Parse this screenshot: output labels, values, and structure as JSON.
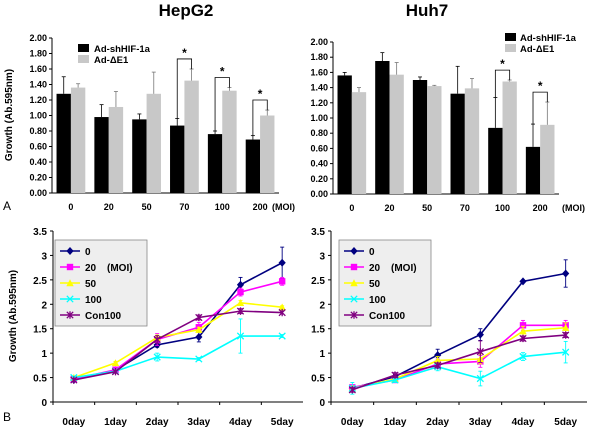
{
  "colors": {
    "bar_shHIF": "#000000",
    "bar_dE1": "#c8c8c8",
    "line_0": "#000080",
    "line_20": "#ff00ff",
    "line_50": "#ffff00",
    "line_100": "#00ffff",
    "line_con100": "#800080",
    "legend_bg": "#eeeeee"
  },
  "panels": {
    "A": "A",
    "B": "B"
  },
  "chart_data": [
    {
      "id": "hepg2-bar",
      "type": "bar",
      "title": "HepG2",
      "ylabel": "Growth (Ab.595nm)",
      "xlabel": "",
      "ylim": [
        0,
        2.0
      ],
      "yticks": [
        "0.00",
        "0.20",
        "0.40",
        "0.60",
        "0.80",
        "1.00",
        "1.20",
        "1.40",
        "1.60",
        "1.80",
        "2.00"
      ],
      "categories": [
        "0",
        "20",
        "50",
        "70",
        "100",
        "200"
      ],
      "x_unit_label": "(MOI)",
      "legend_position": "top-left",
      "series": [
        {
          "name": "Ad-shHIF-1a",
          "values": [
            1.28,
            0.98,
            0.95,
            0.87,
            0.76,
            0.69
          ],
          "errors": [
            0.22,
            0.16,
            0.07,
            0.09,
            0.04,
            0.05
          ]
        },
        {
          "name": "Ad-ΔE1",
          "values": [
            1.36,
            1.11,
            1.28,
            1.45,
            1.32,
            1.0
          ],
          "errors": [
            0.05,
            0.2,
            0.28,
            0.15,
            0.04,
            0.07
          ]
        }
      ],
      "significance": [
        {
          "category": "70",
          "label": "*"
        },
        {
          "category": "100",
          "label": "*"
        },
        {
          "category": "200",
          "label": "*"
        }
      ]
    },
    {
      "id": "huh7-bar",
      "type": "bar",
      "title": "Huh7",
      "ylabel": "",
      "xlabel": "",
      "ylim": [
        0,
        2.0
      ],
      "yticks": [
        "0.00",
        "0.20",
        "0.40",
        "0.60",
        "0.80",
        "1.00",
        "1.20",
        "1.40",
        "1.60",
        "1.80",
        "2.00"
      ],
      "categories": [
        "0",
        "20",
        "50",
        "70",
        "100",
        "200"
      ],
      "x_unit_label": "(MOI)",
      "legend_position": "top-right",
      "series": [
        {
          "name": "Ad-shHIF-1a",
          "values": [
            1.56,
            1.75,
            1.5,
            1.32,
            0.87,
            0.62
          ],
          "errors": [
            0.04,
            0.11,
            0.04,
            0.36,
            0.4,
            0.3
          ]
        },
        {
          "name": "Ad-ΔE1",
          "values": [
            1.34,
            1.57,
            1.42,
            1.39,
            1.48,
            0.91
          ],
          "errors": [
            0.06,
            0.16,
            0.01,
            0.13,
            0.02,
            0.3
          ]
        }
      ],
      "significance": [
        {
          "category": "100",
          "label": "*"
        },
        {
          "category": "200",
          "label": "*"
        }
      ]
    },
    {
      "id": "hepg2-line",
      "type": "line",
      "title": "",
      "ylabel": "Growth (Ab.595nm)",
      "xlabel": "",
      "ylim": [
        0,
        3.5
      ],
      "yticks": [
        "0",
        "0.5",
        "1",
        "1.5",
        "2",
        "2.5",
        "3",
        "3.5"
      ],
      "x": [
        "0day",
        "1day",
        "2day",
        "3day",
        "4day",
        "5day"
      ],
      "legend_position": "top-left",
      "legend_unit": "(MOI)",
      "series": [
        {
          "name": "0",
          "key": "line_0",
          "marker": "diamond",
          "values": [
            0.45,
            0.65,
            1.17,
            1.33,
            2.4,
            2.85
          ],
          "errors": [
            0.03,
            0.03,
            0.05,
            0.1,
            0.15,
            0.32
          ]
        },
        {
          "name": "20",
          "key": "line_20",
          "marker": "square",
          "values": [
            0.47,
            0.66,
            1.28,
            1.53,
            2.25,
            2.47
          ],
          "errors": [
            0.03,
            0.03,
            0.12,
            0.1,
            0.08,
            0.08
          ]
        },
        {
          "name": "50",
          "key": "line_50",
          "marker": "triangle",
          "values": [
            0.5,
            0.8,
            1.32,
            1.48,
            2.03,
            1.94
          ],
          "errors": [
            0.03,
            0.03,
            0.05,
            0.05,
            0.05,
            0.03
          ]
        },
        {
          "name": "100",
          "key": "line_100",
          "marker": "x",
          "values": [
            0.5,
            0.63,
            0.92,
            0.88,
            1.35,
            1.35
          ],
          "errors": [
            0.03,
            0.03,
            0.08,
            0.03,
            0.35,
            0.03
          ]
        },
        {
          "name": "Con100",
          "key": "line_con100",
          "marker": "star",
          "values": [
            0.45,
            0.62,
            1.28,
            1.73,
            1.86,
            1.83
          ],
          "errors": [
            0.03,
            0.03,
            0.08,
            0.05,
            0.05,
            0.03
          ]
        }
      ]
    },
    {
      "id": "huh7-line",
      "type": "line",
      "title": "",
      "ylabel": "",
      "xlabel": "",
      "ylim": [
        0,
        3.5
      ],
      "yticks": [
        "0",
        "0.5",
        "1",
        "1.5",
        "2",
        "2.5",
        "3",
        "3.5"
      ],
      "x": [
        "0day",
        "1day",
        "2day",
        "3day",
        "4day",
        "5day"
      ],
      "legend_position": "top-left",
      "legend_unit": "(MOI)",
      "series": [
        {
          "name": "0",
          "key": "line_0",
          "marker": "diamond",
          "values": [
            0.28,
            0.52,
            0.96,
            1.38,
            2.47,
            2.63
          ],
          "errors": [
            0.05,
            0.05,
            0.12,
            0.12,
            0.02,
            0.28
          ]
        },
        {
          "name": "20",
          "key": "line_20",
          "marker": "square",
          "values": [
            0.3,
            0.45,
            0.78,
            0.83,
            1.57,
            1.57
          ],
          "errors": [
            0.05,
            0.05,
            0.1,
            0.12,
            0.1,
            0.1
          ]
        },
        {
          "name": "50",
          "key": "line_50",
          "marker": "triangle",
          "values": [
            0.28,
            0.47,
            0.85,
            0.88,
            1.45,
            1.52
          ],
          "errors": [
            0.05,
            0.05,
            0.08,
            0.1,
            0.1,
            0.1
          ]
        },
        {
          "name": "100",
          "key": "line_100",
          "marker": "x",
          "values": [
            0.28,
            0.45,
            0.72,
            0.48,
            0.93,
            1.02
          ],
          "errors": [
            0.12,
            0.05,
            0.08,
            0.15,
            0.08,
            0.22
          ]
        },
        {
          "name": "Con100",
          "key": "line_con100",
          "marker": "star",
          "values": [
            0.25,
            0.55,
            0.75,
            1.03,
            1.3,
            1.37
          ],
          "errors": [
            0.05,
            0.05,
            0.05,
            0.22,
            0.05,
            0.05
          ]
        }
      ]
    }
  ]
}
